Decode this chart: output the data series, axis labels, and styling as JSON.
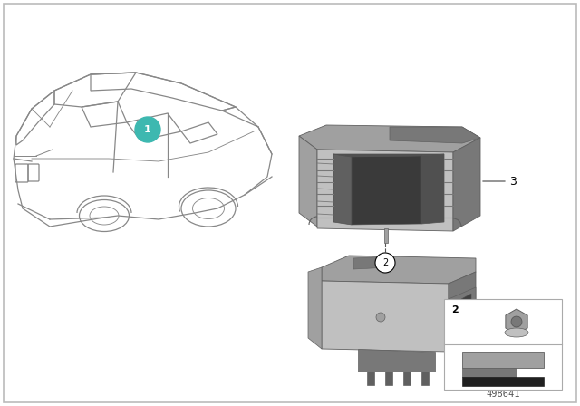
{
  "background_color": "#ffffff",
  "border_color": "#bbbbbb",
  "part_number": "498641",
  "teal_color": "#3db8b0",
  "car_color": "#888888",
  "car_lw": 0.9,
  "part_gray1": "#c0c0c0",
  "part_gray2": "#a0a0a0",
  "part_gray3": "#787878",
  "part_gray4": "#606060",
  "part_gray5": "#505050",
  "line_color": "#444444",
  "label_color": "#222222"
}
